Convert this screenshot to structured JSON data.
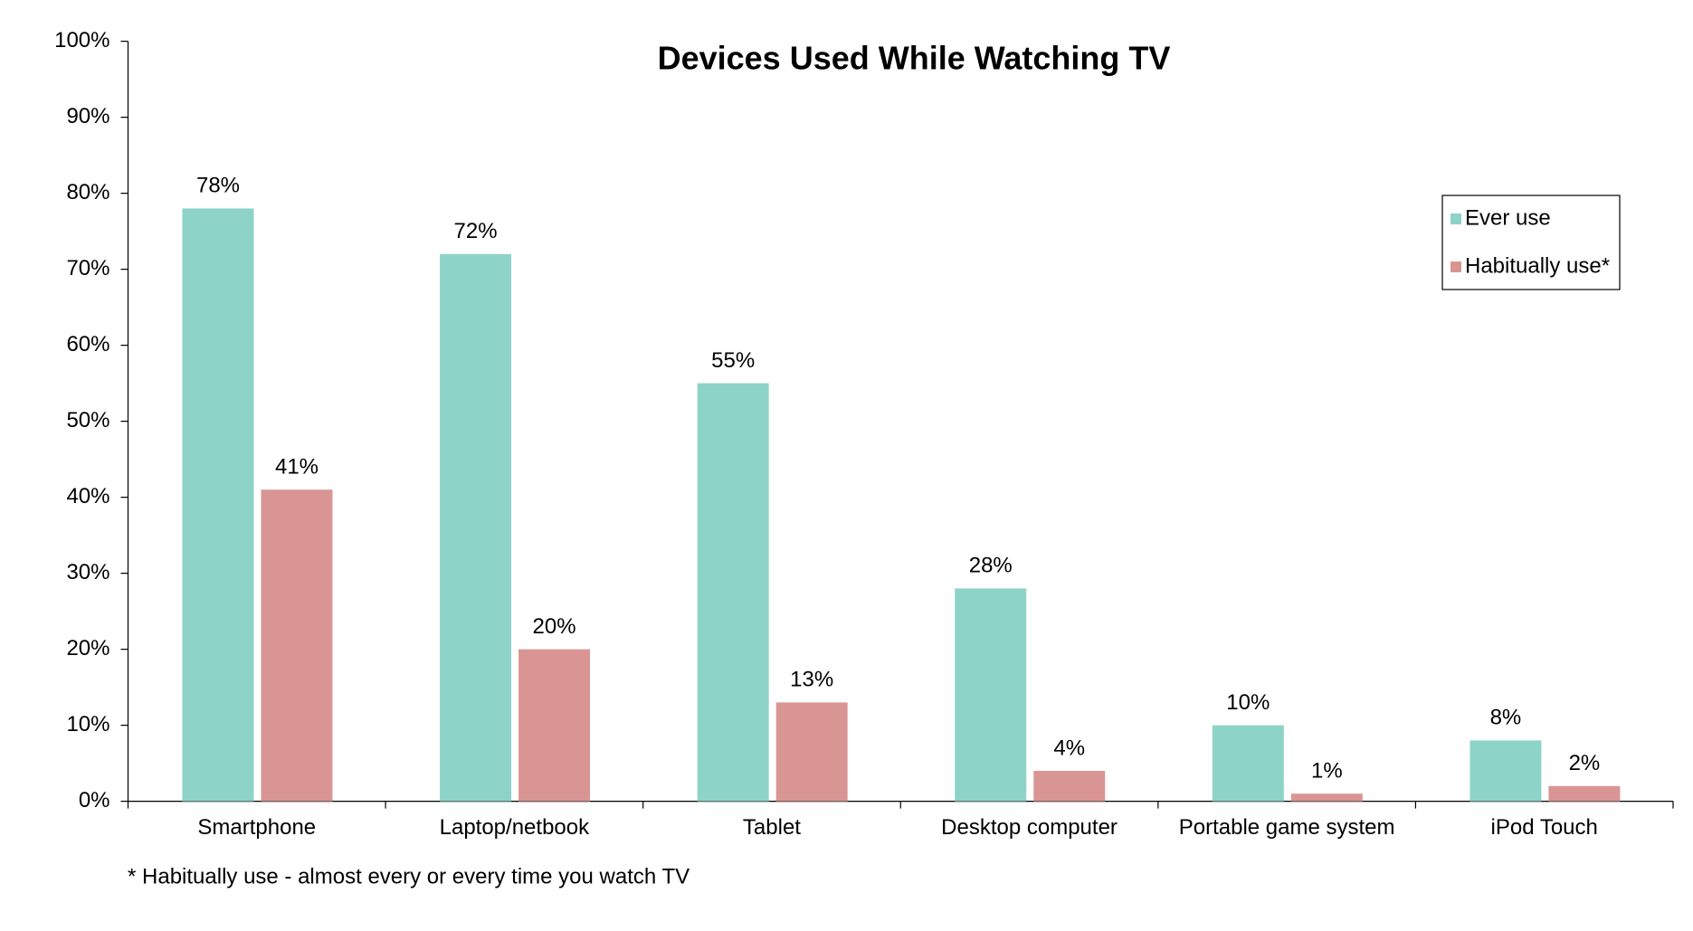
{
  "chart_data": {
    "type": "bar",
    "title": "Devices Used While Watching TV",
    "footnote": "* Habitually use - almost every or every time you watch TV",
    "categories": [
      "Smartphone",
      "Laptop/netbook",
      "Tablet",
      "Desktop computer",
      "Portable game system",
      "iPod Touch"
    ],
    "series": [
      {
        "name": "Ever use",
        "color": "#8ed3c7",
        "values": [
          78,
          72,
          55,
          28,
          10,
          8
        ],
        "value_labels": [
          "78%",
          "72%",
          "55%",
          "28%",
          "10%",
          "8%"
        ]
      },
      {
        "name": "Habitually use*",
        "color": "#d99594",
        "values": [
          41,
          20,
          13,
          4,
          1,
          2
        ],
        "value_labels": [
          "41%",
          "20%",
          "13%",
          "4%",
          "1%",
          "2%"
        ]
      }
    ],
    "ylim": [
      0,
      100
    ],
    "yticks": [
      {
        "value": 0,
        "label": "0%"
      },
      {
        "value": 10,
        "label": "10%"
      },
      {
        "value": 20,
        "label": "20%"
      },
      {
        "value": 30,
        "label": "30%"
      },
      {
        "value": 40,
        "label": "40%"
      },
      {
        "value": 50,
        "label": "50%"
      },
      {
        "value": 60,
        "label": "60%"
      },
      {
        "value": 70,
        "label": "70%"
      },
      {
        "value": 80,
        "label": "80%"
      },
      {
        "value": 90,
        "label": "90%"
      },
      {
        "value": 100,
        "label": "100%"
      }
    ],
    "grid": false,
    "legend": "top-right"
  }
}
